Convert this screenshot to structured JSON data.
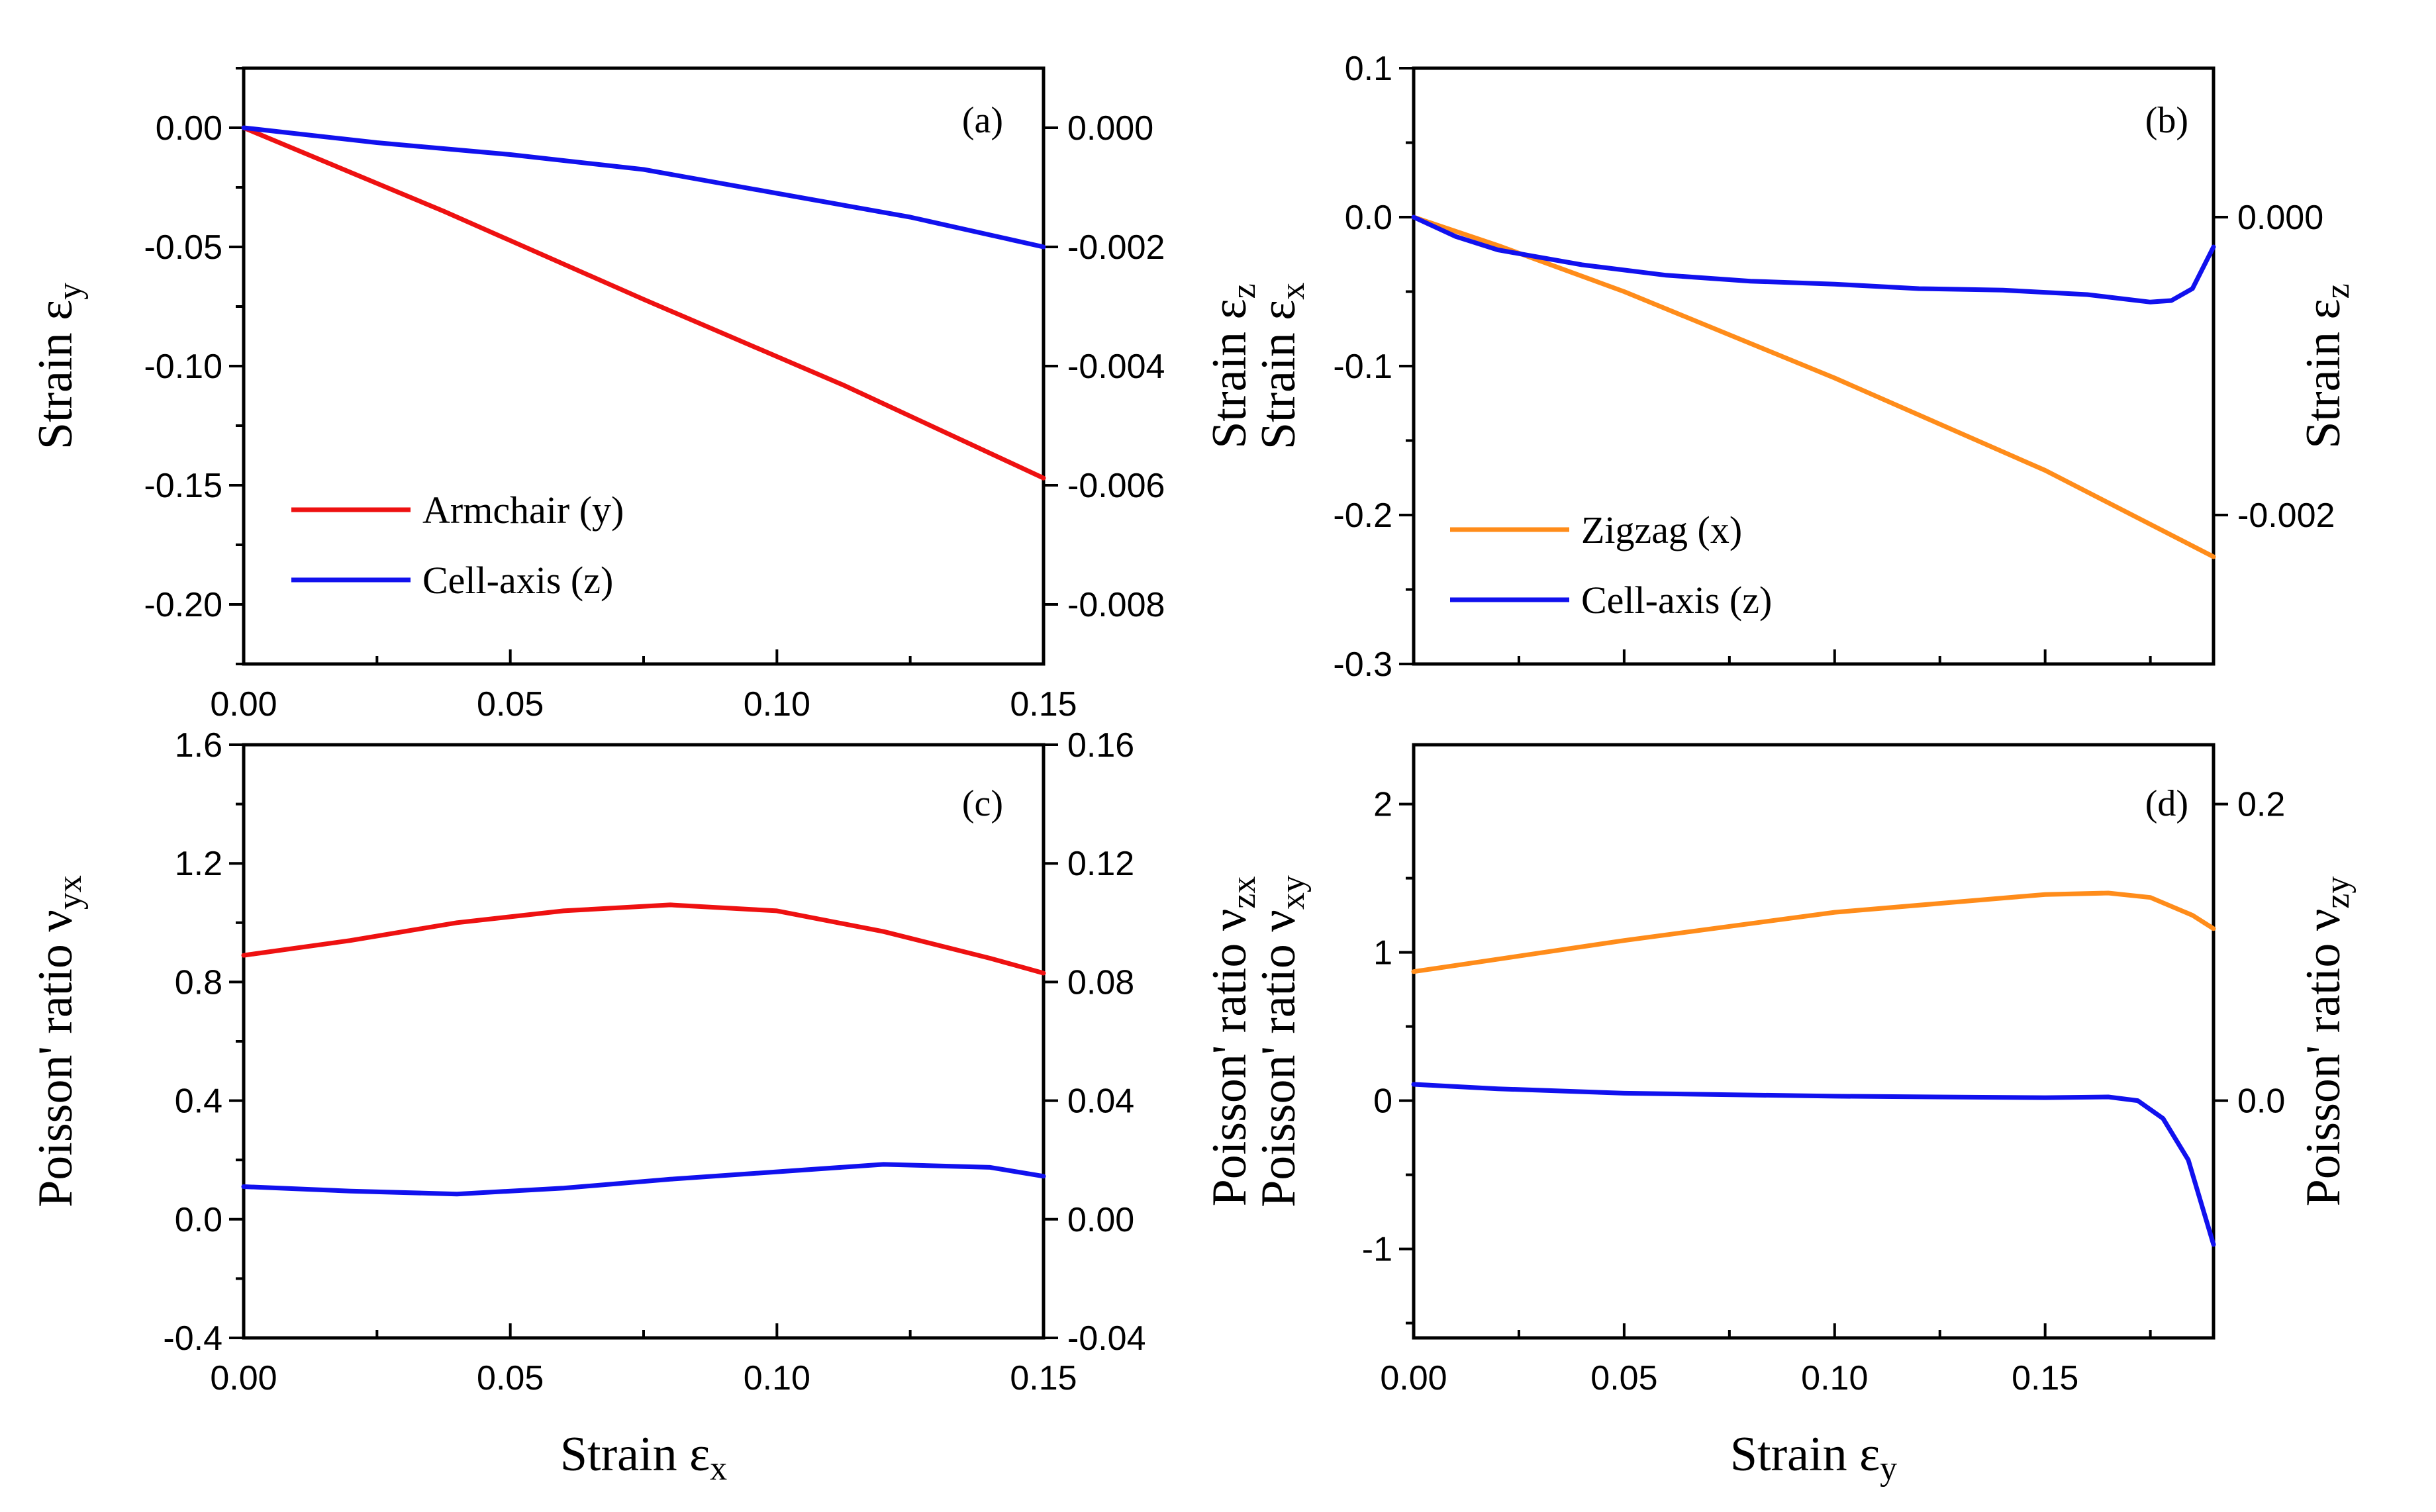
{
  "colors": {
    "armchair": "#ee1111",
    "zigzag": "#ff8c1a",
    "cell_axis": "#1111ee",
    "axis": "#000000"
  },
  "chart_data": [
    {
      "panel": "(a)",
      "type": "line",
      "xlim": [
        0,
        0.15
      ],
      "xticks": [
        0.0,
        0.05,
        0.1,
        0.15
      ],
      "xtick_labels": [
        "0.00",
        "0.05",
        "0.10",
        "0.15"
      ],
      "ylabel": "Strain ε",
      "ylabel_sub": "y",
      "ylim": [
        -0.225,
        0.025
      ],
      "yticks": [
        0.0,
        -0.05,
        -0.1,
        -0.15,
        -0.2
      ],
      "ytick_labels": [
        "0.00",
        "-0.05",
        "-0.10",
        "-0.15",
        "-0.20"
      ],
      "y2label": "Strain ε",
      "y2label_sub": "z",
      "y2lim": [
        -0.009,
        0.001
      ],
      "y2ticks": [
        0.0,
        -0.002,
        -0.004,
        -0.006,
        -0.008
      ],
      "y2tick_labels": [
        "0.000",
        "-0.002",
        "-0.004",
        "-0.006",
        "-0.008"
      ],
      "legend": {
        "placement": "bottom-left",
        "entries": [
          "Armchair (y)",
          "Cell-axis (z)"
        ]
      },
      "series": [
        {
          "name": "Armchair (y)",
          "color_key": "armchair",
          "axis": "left",
          "x": [
            0,
            0.0375,
            0.075,
            0.1125,
            0.15
          ],
          "y": [
            0,
            -0.035,
            -0.072,
            -0.108,
            -0.147
          ]
        },
        {
          "name": "Cell-axis (z)",
          "color_key": "cell_axis",
          "axis": "right",
          "x": [
            0,
            0.025,
            0.05,
            0.075,
            0.1,
            0.125,
            0.15
          ],
          "y": [
            0,
            -0.00025,
            -0.00045,
            -0.0007,
            -0.0011,
            -0.0015,
            -0.002
          ]
        }
      ]
    },
    {
      "panel": "(b)",
      "type": "line",
      "xlim": [
        0,
        0.19
      ],
      "xticks": [
        0.0,
        0.05,
        0.1,
        0.15
      ],
      "xtick_labels": [],
      "ylabel": "Strain ε",
      "ylabel_sub": "x",
      "ylim": [
        -0.3,
        0.1
      ],
      "yticks": [
        0.1,
        0.0,
        -0.1,
        -0.2,
        -0.3
      ],
      "ytick_labels": [
        "0.1",
        "0.0",
        "-0.1",
        "-0.2",
        "-0.3"
      ],
      "y2label": "Strain ε",
      "y2label_sub": "z",
      "y2lim": [
        -0.003,
        0.001
      ],
      "y2ticks": [
        0.0,
        -0.002
      ],
      "y2tick_labels": [
        "0.000",
        "-0.002"
      ],
      "legend": {
        "placement": "bottom-left",
        "entries": [
          "Zigzag (x)",
          "Cell-axis (z)"
        ]
      },
      "series": [
        {
          "name": "Zigzag (x)",
          "color_key": "zigzag",
          "axis": "left",
          "x": [
            0,
            0.02,
            0.05,
            0.1,
            0.15,
            0.19
          ],
          "y": [
            0,
            -0.019,
            -0.05,
            -0.108,
            -0.17,
            -0.228
          ]
        },
        {
          "name": "Cell-axis (z)",
          "color_key": "cell_axis",
          "axis": "right",
          "x": [
            0,
            0.01,
            0.02,
            0.04,
            0.06,
            0.08,
            0.1,
            0.12,
            0.14,
            0.16,
            0.175,
            0.18,
            0.185,
            0.19
          ],
          "y": [
            0,
            -0.00013,
            -0.00022,
            -0.00032,
            -0.00039,
            -0.00043,
            -0.00045,
            -0.00048,
            -0.00049,
            -0.00052,
            -0.00057,
            -0.00056,
            -0.00048,
            -0.0002
          ]
        }
      ]
    },
    {
      "panel": "(c)",
      "type": "line",
      "xlim": [
        0,
        0.15
      ],
      "xticks": [
        0.0,
        0.05,
        0.1,
        0.15
      ],
      "xtick_labels": [
        "0.00",
        "0.05",
        "0.10",
        "0.15"
      ],
      "xlabel": "Strain ε",
      "xlabel_sub": "x",
      "ylabel": "Poisson' ratio ν",
      "ylabel_sub": "yx",
      "ylim": [
        -0.4,
        1.6
      ],
      "yticks": [
        1.6,
        1.2,
        0.8,
        0.4,
        0.0,
        -0.4
      ],
      "ytick_labels": [
        "1.6",
        "1.2",
        "0.8",
        "0.4",
        "0.0",
        "-0.4"
      ],
      "y2label": "Poisson' ratio ν",
      "y2label_sub": "zx",
      "y2lim": [
        -0.04,
        0.16
      ],
      "y2ticks": [
        0.16,
        0.12,
        0.08,
        0.04,
        0.0,
        -0.04
      ],
      "y2tick_labels": [
        "0.16",
        "0.12",
        "0.08",
        "0.04",
        "0.00",
        "-0.04"
      ],
      "series": [
        {
          "name": "Armchair (y)",
          "color_key": "armchair",
          "axis": "left",
          "x": [
            0,
            0.02,
            0.04,
            0.06,
            0.08,
            0.1,
            0.12,
            0.14,
            0.15
          ],
          "y": [
            0.89,
            0.94,
            1.0,
            1.04,
            1.06,
            1.04,
            0.97,
            0.88,
            0.83
          ]
        },
        {
          "name": "Cell-axis (z)",
          "color_key": "cell_axis",
          "axis": "right",
          "x": [
            0,
            0.02,
            0.04,
            0.06,
            0.08,
            0.1,
            0.12,
            0.14,
            0.15
          ],
          "y": [
            0.011,
            0.0095,
            0.0085,
            0.0105,
            0.0135,
            0.016,
            0.0185,
            0.0175,
            0.0145
          ]
        }
      ]
    },
    {
      "panel": "(d)",
      "type": "line",
      "xlim": [
        0,
        0.19
      ],
      "xticks": [
        0.0,
        0.05,
        0.1,
        0.15
      ],
      "xtick_labels": [
        "0.00",
        "0.05",
        "0.10",
        "0.15"
      ],
      "xlabel": "Strain ε",
      "xlabel_sub": "y",
      "ylabel": "Poisson' ratio ν",
      "ylabel_sub": "xy",
      "ylim": [
        -1.6,
        2.4
      ],
      "yticks": [
        2,
        1,
        0,
        -1
      ],
      "ytick_labels": [
        "2",
        "1",
        "0",
        "-1"
      ],
      "y2label": "Poisson' ratio ν",
      "y2label_sub": "zy",
      "y2lim": [
        -0.16,
        0.24
      ],
      "y2ticks": [
        0.2,
        0.0
      ],
      "y2tick_labels": [
        "0.2",
        "0.0"
      ],
      "series": [
        {
          "name": "Zigzag (x)",
          "color_key": "zigzag",
          "axis": "left",
          "x": [
            0,
            0.05,
            0.1,
            0.15,
            0.165,
            0.175,
            0.185,
            0.19
          ],
          "y": [
            0.87,
            1.08,
            1.27,
            1.39,
            1.4,
            1.37,
            1.25,
            1.16
          ]
        },
        {
          "name": "Cell-axis (z)",
          "color_key": "cell_axis",
          "axis": "right",
          "x": [
            0,
            0.02,
            0.05,
            0.1,
            0.15,
            0.165,
            0.172,
            0.178,
            0.184,
            0.19
          ],
          "y": [
            0.011,
            0.008,
            0.005,
            0.003,
            0.002,
            0.0025,
            0.0,
            -0.012,
            -0.04,
            -0.097
          ]
        }
      ]
    }
  ]
}
